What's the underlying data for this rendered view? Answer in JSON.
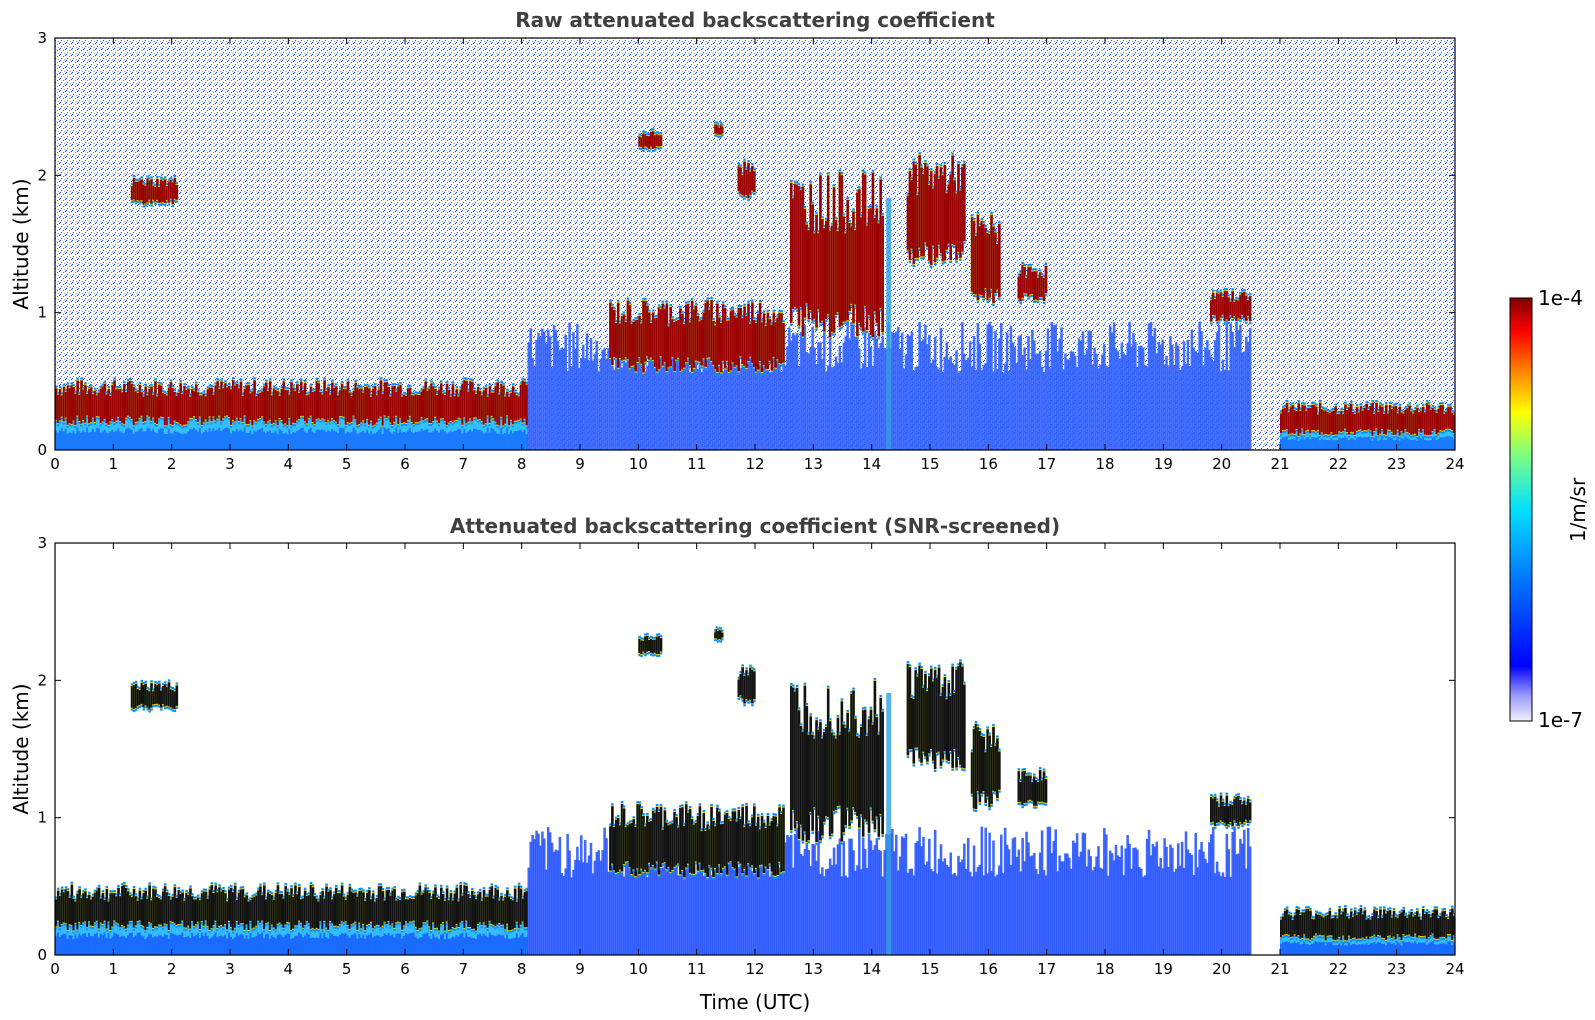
{
  "chart_data": [
    {
      "type": "heatmap",
      "title": "Raw attenuated backscattering coefficient",
      "xlabel": "",
      "ylabel": "Altitude (km)",
      "xlim": [
        0,
        24
      ],
      "ylim": [
        0,
        3
      ],
      "x_ticks": [
        "0",
        "1",
        "2",
        "3",
        "4",
        "5",
        "6",
        "7",
        "8",
        "9",
        "10",
        "11",
        "12",
        "13",
        "14",
        "15",
        "16",
        "17",
        "18",
        "19",
        "20",
        "21",
        "22",
        "23",
        "24"
      ],
      "y_ticks": [
        "0",
        "1",
        "2",
        "3"
      ],
      "features": [
        {
          "kind": "boundary_layer",
          "x": [
            0,
            8.1
          ],
          "y": [
            0.2,
            0.45
          ],
          "intensity": 1.0
        },
        {
          "kind": "boundary_layer",
          "x": [
            21,
            24
          ],
          "y": [
            0.12,
            0.3
          ],
          "intensity": 1.0
        },
        {
          "kind": "diffuse_layer",
          "x": [
            8.1,
            20.5
          ],
          "y": [
            0.0,
            0.75
          ],
          "intensity": 0.28
        },
        {
          "kind": "cloud",
          "x": [
            1.3,
            2.1
          ],
          "y": [
            1.8,
            1.95
          ]
        },
        {
          "kind": "cloud",
          "x": [
            10.0,
            10.4
          ],
          "y": [
            2.2,
            2.3
          ]
        },
        {
          "kind": "cloud",
          "x": [
            11.3,
            11.45
          ],
          "y": [
            2.3,
            2.36
          ]
        },
        {
          "kind": "cloud",
          "x": [
            11.7,
            12.0
          ],
          "y": [
            1.85,
            2.05
          ]
        },
        {
          "kind": "cloud",
          "x": [
            9.5,
            12.5
          ],
          "y": [
            0.6,
            1.0
          ]
        },
        {
          "kind": "cloud",
          "x": [
            12.6,
            14.2
          ],
          "y": [
            0.9,
            1.8
          ]
        },
        {
          "kind": "cloud",
          "x": [
            14.6,
            15.6
          ],
          "y": [
            1.4,
            2.0
          ]
        },
        {
          "kind": "cloud",
          "x": [
            15.7,
            16.2
          ],
          "y": [
            1.1,
            1.6
          ]
        },
        {
          "kind": "cloud",
          "x": [
            16.5,
            17.0
          ],
          "y": [
            1.1,
            1.3
          ]
        },
        {
          "kind": "cloud",
          "x": [
            19.8,
            20.5
          ],
          "y": [
            0.95,
            1.12
          ]
        }
      ]
    },
    {
      "type": "heatmap",
      "title": "Attenuated backscattering coefficient (SNR-screened)",
      "xlabel": "Time (UTC)",
      "ylabel": "Altitude (km)",
      "xlim": [
        0,
        24
      ],
      "ylim": [
        0,
        3
      ],
      "x_ticks": [
        "0",
        "1",
        "2",
        "3",
        "4",
        "5",
        "6",
        "7",
        "8",
        "9",
        "10",
        "11",
        "12",
        "13",
        "14",
        "15",
        "16",
        "17",
        "18",
        "19",
        "20",
        "21",
        "22",
        "23",
        "24"
      ],
      "y_ticks": [
        "0",
        "1",
        "2",
        "3"
      ]
    }
  ],
  "colorbar": {
    "label": "1/m/sr",
    "max_label": "1e-4",
    "min_label": "1e-7",
    "scale": "log",
    "colormap": [
      "#e8e8f8",
      "#8080ff",
      "#0000ff",
      "#0080ff",
      "#00ffff",
      "#80ff80",
      "#ffff00",
      "#ff8000",
      "#ff0000",
      "#800000"
    ]
  }
}
